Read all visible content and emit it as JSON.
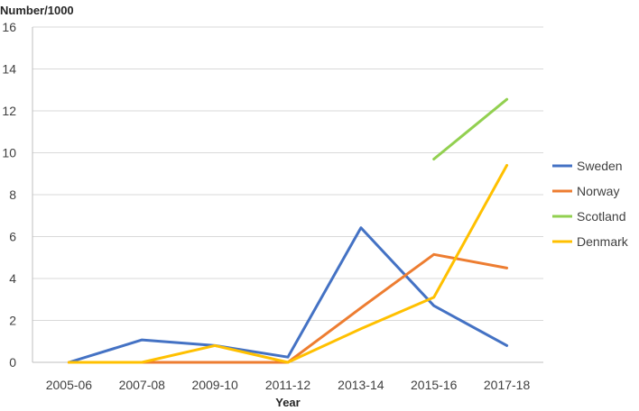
{
  "chart_data": {
    "type": "line",
    "title": "",
    "ylabel": "Number/1000",
    "xlabel": "Year",
    "categories": [
      "2005-06",
      "2007-08",
      "2009-10",
      "2011-12",
      "2013-14",
      "2015-16",
      "2017-18"
    ],
    "ylim": [
      0,
      16
    ],
    "yticks": [
      0,
      2,
      4,
      6,
      8,
      10,
      12,
      14,
      16
    ],
    "grid": true,
    "legend": "right",
    "series": [
      {
        "name": "Sweden",
        "color": "#4472c4",
        "values": [
          0,
          1.07,
          0.8,
          0.25,
          6.42,
          2.7,
          0.8
        ]
      },
      {
        "name": "Norway",
        "color": "#ed7d31",
        "values": [
          0,
          0,
          0,
          0,
          2.6,
          5.15,
          4.5
        ]
      },
      {
        "name": "Scotland",
        "color": "#92d050",
        "values": [
          null,
          null,
          null,
          null,
          null,
          9.7,
          12.55
        ]
      },
      {
        "name": "Denmark",
        "color": "#ffc000",
        "values": [
          0,
          0,
          0.8,
          0,
          1.6,
          3.1,
          9.4
        ]
      }
    ]
  }
}
